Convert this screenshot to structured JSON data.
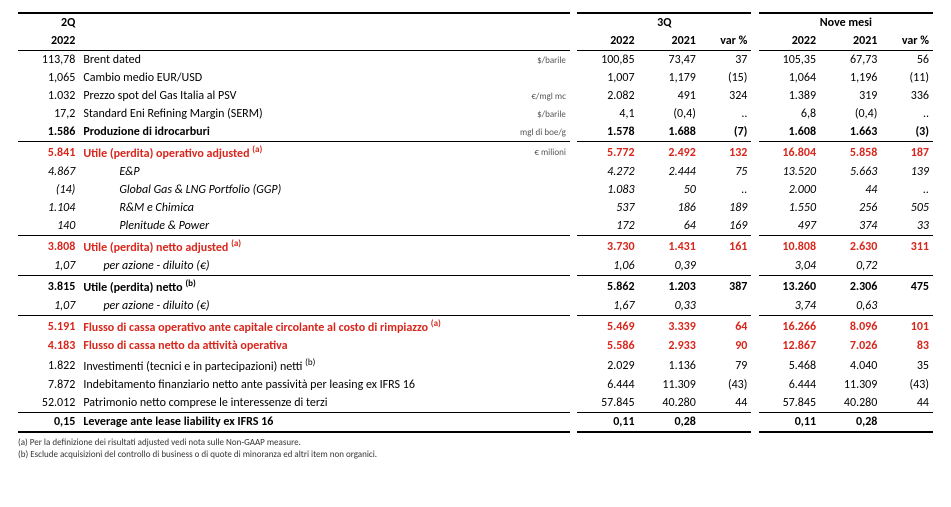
{
  "header": {
    "q2": "2Q",
    "q3": "3Q",
    "nine": "Nove mesi",
    "y2022": "2022",
    "y2021": "2021",
    "var": "var %"
  },
  "rows": [
    {
      "q2": "113,78",
      "label": "Brent dated",
      "unit": "$/barile",
      "q3_22": "100,85",
      "q3_21": "73,47",
      "q3_var": "37",
      "n_22": "105,35",
      "n_21": "67,73",
      "n_var": "56"
    },
    {
      "q2": "1,065",
      "label": "Cambio medio EUR/USD",
      "unit": "",
      "q3_22": "1,007",
      "q3_21": "1,179",
      "q3_var": "(15)",
      "n_22": "1,064",
      "n_21": "1,196",
      "n_var": "(11)"
    },
    {
      "q2": "1.032",
      "label": "Prezzo spot del Gas Italia al PSV",
      "unit": "€/mgl mc",
      "q3_22": "2.082",
      "q3_21": "491",
      "q3_var": "324",
      "n_22": "1.389",
      "n_21": "319",
      "n_var": "336"
    },
    {
      "q2": "17,2",
      "label": "Standard Eni Refining Margin (SERM)",
      "unit": "$/barile",
      "q3_22": "4,1",
      "q3_21": "(0,4)",
      "q3_var": "..",
      "n_22": "6,8",
      "n_21": "(0,4)",
      "n_var": ".."
    },
    {
      "q2": "1.586",
      "label": "Produzione di idrocarburi",
      "unit": "mgl di boe/g",
      "q3_22": "1.578",
      "q3_21": "1.688",
      "q3_var": "(7)",
      "n_22": "1.608",
      "n_21": "1.663",
      "n_var": "(3)",
      "bold": true,
      "sbot": true
    },
    {
      "q2": "5.841",
      "label": "Utile (perdita) operativo adjusted ",
      "sup": "(a)",
      "unit": "€ milioni",
      "q3_22": "5.772",
      "q3_21": "2.492",
      "q3_var": "132",
      "n_22": "16.804",
      "n_21": "5.858",
      "n_var": "187",
      "bold": true,
      "red": true
    },
    {
      "q2": "4.867",
      "label": "E&P",
      "indent": true,
      "q3_22": "4.272",
      "q3_21": "2.444",
      "q3_var": "75",
      "n_22": "13.520",
      "n_21": "5.663",
      "n_var": "139",
      "italic": true
    },
    {
      "q2": "(14)",
      "label": "Global Gas & LNG Portfolio (GGP)",
      "indent": true,
      "q3_22": "1.083",
      "q3_21": "50",
      "q3_var": "..",
      "n_22": "2.000",
      "n_21": "44",
      "n_var": "..",
      "italic": true
    },
    {
      "q2": "1.104",
      "label": "R&M e Chimica",
      "indent": true,
      "q3_22": "537",
      "q3_21": "186",
      "q3_var": "189",
      "n_22": "1.550",
      "n_21": "256",
      "n_var": "505",
      "italic": true
    },
    {
      "q2": "140",
      "label": "Plenitude & Power",
      "indent": true,
      "q3_22": "172",
      "q3_21": "64",
      "q3_var": "169",
      "n_22": "497",
      "n_21": "374",
      "n_var": "33",
      "italic": true,
      "sbot": true
    },
    {
      "q2": "3.808",
      "label": "Utile (perdita) netto adjusted ",
      "sup": "(a)",
      "q3_22": "3.730",
      "q3_21": "1.431",
      "q3_var": "161",
      "n_22": "10.808",
      "n_21": "2.630",
      "n_var": "311",
      "bold": true,
      "red": true
    },
    {
      "q2": "1,07",
      "label": "per azione - diluito (€)",
      "indent2": true,
      "q3_22": "1,06",
      "q3_21": "0,39",
      "q3_var": "",
      "n_22": "3,04",
      "n_21": "0,72",
      "n_var": "",
      "italic": true,
      "sbot": true
    },
    {
      "q2": "3.815",
      "label": "Utile (perdita) netto ",
      "sup": "(b)",
      "q3_22": "5.862",
      "q3_21": "1.203",
      "q3_var": "387",
      "n_22": "13.260",
      "n_21": "2.306",
      "n_var": "475",
      "bold": true
    },
    {
      "q2": "1,07",
      "label": "per azione - diluito (€)",
      "indent2": true,
      "q3_22": "1,67",
      "q3_21": "0,33",
      "q3_var": "",
      "n_22": "3,74",
      "n_21": "0,63",
      "n_var": "",
      "italic": true,
      "sbot": true
    },
    {
      "q2": "5.191",
      "label": "Flusso di cassa operativo ante capitale circolante al costo di rimpiazzo ",
      "sup": "(a)",
      "q3_22": "5.469",
      "q3_21": "3.339",
      "q3_var": "64",
      "n_22": "16.266",
      "n_21": "8.096",
      "n_var": "101",
      "bold": true,
      "red": true
    },
    {
      "q2": "4.183",
      "label": "Flusso di cassa netto da attività operativa",
      "q3_22": "5.586",
      "q3_21": "2.933",
      "q3_var": "90",
      "n_22": "12.867",
      "n_21": "7.026",
      "n_var": "83",
      "bold": true,
      "red": true
    },
    {
      "q2": "1.822",
      "label": "Investimenti (tecnici e in partecipazioni) netti ",
      "sup": "(b)",
      "q3_22": "2.029",
      "q3_21": "1.136",
      "q3_var": "79",
      "n_22": "5.468",
      "n_21": "4.040",
      "n_var": "35"
    },
    {
      "q2": "7.872",
      "label": "Indebitamento finanziario netto ante passività per leasing ex IFRS 16",
      "q3_22": "6.444",
      "q3_21": "11.309",
      "q3_var": "(43)",
      "n_22": "6.444",
      "n_21": "11.309",
      "n_var": "(43)"
    },
    {
      "q2": "52.012",
      "label": "Patrimonio netto comprese le interessenze di terzi",
      "q3_22": "57.845",
      "q3_21": "40.280",
      "q3_var": "44",
      "n_22": "57.845",
      "n_21": "40.280",
      "n_var": "44",
      "sbot": true
    },
    {
      "q2": "0,15",
      "label": "Leverage ante lease liability ex IFRS 16",
      "q3_22": "0,11",
      "q3_21": "0,28",
      "q3_var": "",
      "n_22": "0,11",
      "n_21": "0,28",
      "n_var": "",
      "bold": true,
      "dbot": true
    }
  ],
  "footnotes": [
    "(a) Per la definizione dei risultati adjusted vedi nota sulle Non-GAAP measure.",
    "(b) Esclude acquisizioni del controllo di business o di quote di minoranza ed altri item non organici."
  ]
}
